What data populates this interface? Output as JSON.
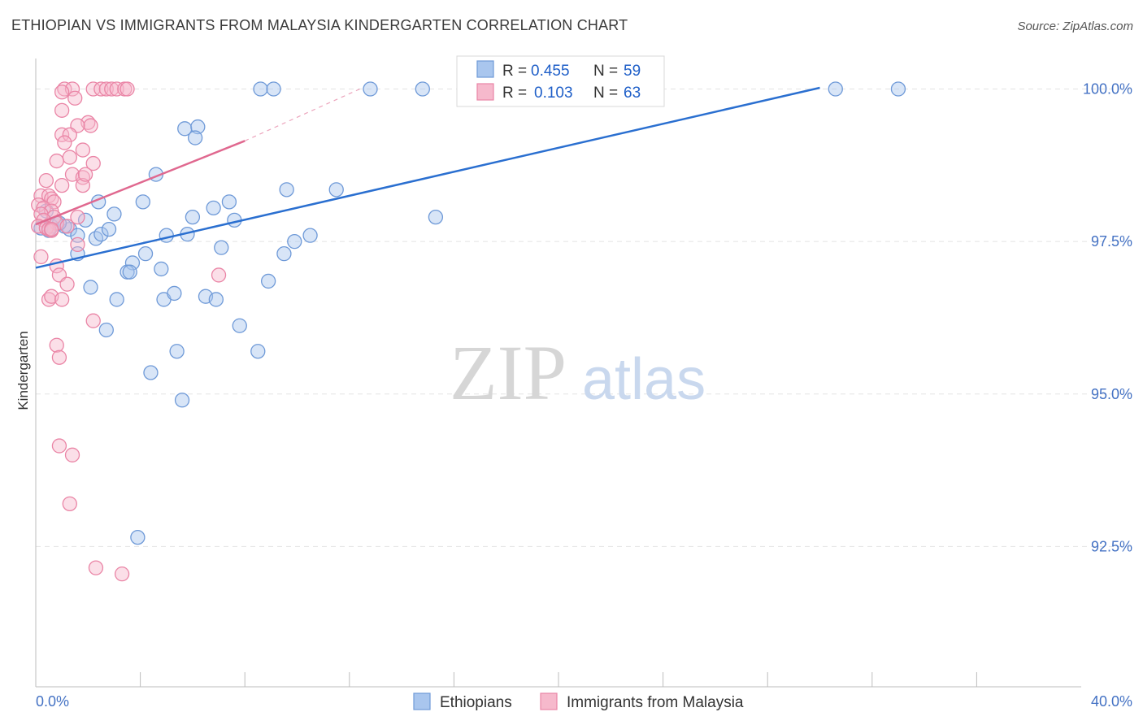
{
  "chart_data": {
    "type": "scatter",
    "title": "ETHIOPIAN VS IMMIGRANTS FROM MALAYSIA KINDERGARTEN CORRELATION CHART",
    "source": "Source: ZipAtlas.com",
    "ylabel": "Kindergarten",
    "xlim": [
      0,
      40
    ],
    "ylim": [
      90.2,
      100.5
    ],
    "x_tick_labels": [
      "0.0%",
      "40.0%"
    ],
    "y_ticks": [
      92.5,
      95.0,
      97.5,
      100.0
    ],
    "y_tick_labels": [
      "92.5%",
      "95.0%",
      "97.5%",
      "100.0%"
    ],
    "watermark": {
      "zip": "ZIP",
      "atlas": "atlas"
    },
    "colors": {
      "ethiopians_fill": "#a9c6ee",
      "ethiopians_stroke": "#6f9ad8",
      "ethiopians_line": "#2a6fd0",
      "malaysia_fill": "#f6b9cc",
      "malaysia_stroke": "#ea85a6",
      "malaysia_line": "#e0688f",
      "tick_text": "#4472c4",
      "grid": "#e3e3e3"
    },
    "legend": {
      "r_label": "R =",
      "n_label": "N =",
      "items": [
        {
          "r": "0.455",
          "n": "59"
        },
        {
          "r": "0.103",
          "n": "63"
        }
      ]
    },
    "series": [
      {
        "name": "Ethiopians",
        "trend": {
          "x": [
            0.0,
            30.0
          ],
          "y": [
            97.07,
            100.02
          ]
        },
        "points": [
          [
            8.6,
            100.0
          ],
          [
            9.1,
            100.0
          ],
          [
            12.8,
            100.0
          ],
          [
            14.8,
            100.0
          ],
          [
            30.6,
            100.0
          ],
          [
            33.0,
            100.0
          ],
          [
            5.7,
            99.35
          ],
          [
            6.2,
            99.38
          ],
          [
            6.1,
            99.2
          ],
          [
            4.6,
            98.6
          ],
          [
            9.6,
            98.35
          ],
          [
            11.5,
            98.35
          ],
          [
            15.3,
            97.9
          ],
          [
            2.4,
            98.15
          ],
          [
            4.1,
            98.15
          ],
          [
            6.8,
            98.05
          ],
          [
            7.4,
            98.15
          ],
          [
            7.6,
            97.85
          ],
          [
            0.4,
            98.0
          ],
          [
            0.8,
            97.8
          ],
          [
            1.9,
            97.85
          ],
          [
            3.0,
            97.95
          ],
          [
            0.2,
            97.72
          ],
          [
            0.6,
            97.75
          ],
          [
            1.3,
            97.7
          ],
          [
            1.6,
            97.6
          ],
          [
            2.3,
            97.55
          ],
          [
            2.5,
            97.62
          ],
          [
            5.0,
            97.6
          ],
          [
            5.8,
            97.62
          ],
          [
            7.1,
            97.4
          ],
          [
            9.9,
            97.5
          ],
          [
            1.6,
            97.3
          ],
          [
            4.2,
            97.3
          ],
          [
            3.7,
            97.15
          ],
          [
            3.5,
            97.0
          ],
          [
            3.6,
            97.0
          ],
          [
            4.8,
            97.05
          ],
          [
            9.5,
            97.3
          ],
          [
            2.1,
            96.75
          ],
          [
            8.9,
            96.85
          ],
          [
            3.1,
            96.55
          ],
          [
            4.9,
            96.55
          ],
          [
            5.3,
            96.65
          ],
          [
            6.5,
            96.6
          ],
          [
            6.9,
            96.55
          ],
          [
            2.7,
            96.05
          ],
          [
            7.8,
            96.12
          ],
          [
            5.4,
            95.7
          ],
          [
            8.5,
            95.7
          ],
          [
            4.4,
            95.35
          ],
          [
            5.6,
            94.9
          ],
          [
            3.9,
            92.65
          ],
          [
            0.5,
            97.68
          ],
          [
            1.1,
            97.75
          ],
          [
            0.9,
            97.8
          ],
          [
            2.8,
            97.7
          ],
          [
            6.0,
            97.9
          ],
          [
            10.5,
            97.6
          ]
        ]
      },
      {
        "name": "Immigrants from Malaysia",
        "trend": {
          "x": [
            0.0,
            8.0
          ],
          "y": [
            97.78,
            99.15
          ]
        },
        "trend_ext": {
          "x": [
            8.0,
            12.5
          ],
          "y": [
            99.15,
            100.02
          ]
        },
        "points": [
          [
            1.1,
            100.0
          ],
          [
            1.4,
            100.0
          ],
          [
            2.2,
            100.0
          ],
          [
            2.5,
            100.0
          ],
          [
            2.7,
            100.0
          ],
          [
            2.9,
            100.0
          ],
          [
            3.1,
            100.0
          ],
          [
            3.4,
            100.0
          ],
          [
            3.5,
            100.0
          ],
          [
            1.0,
            99.95
          ],
          [
            1.5,
            99.85
          ],
          [
            1.0,
            99.65
          ],
          [
            2.0,
            99.45
          ],
          [
            2.1,
            99.4
          ],
          [
            1.6,
            99.4
          ],
          [
            1.0,
            99.25
          ],
          [
            1.3,
            99.25
          ],
          [
            1.1,
            99.12
          ],
          [
            1.8,
            99.0
          ],
          [
            1.3,
            98.88
          ],
          [
            0.8,
            98.82
          ],
          [
            2.2,
            98.78
          ],
          [
            1.4,
            98.6
          ],
          [
            1.8,
            98.55
          ],
          [
            0.4,
            98.5
          ],
          [
            1.8,
            98.42
          ],
          [
            1.0,
            98.42
          ],
          [
            0.2,
            98.25
          ],
          [
            0.5,
            98.25
          ],
          [
            0.6,
            98.2
          ],
          [
            0.7,
            98.15
          ],
          [
            0.1,
            98.1
          ],
          [
            0.3,
            98.05
          ],
          [
            0.6,
            98.0
          ],
          [
            0.2,
            97.95
          ],
          [
            0.7,
            97.9
          ],
          [
            1.6,
            97.9
          ],
          [
            0.3,
            97.85
          ],
          [
            0.8,
            97.8
          ],
          [
            0.1,
            97.75
          ],
          [
            0.4,
            97.72
          ],
          [
            0.5,
            97.7
          ],
          [
            0.6,
            97.68
          ],
          [
            1.2,
            97.75
          ],
          [
            1.6,
            97.45
          ],
          [
            0.2,
            97.25
          ],
          [
            0.8,
            97.1
          ],
          [
            0.9,
            96.95
          ],
          [
            7.0,
            96.95
          ],
          [
            1.2,
            96.8
          ],
          [
            0.5,
            96.55
          ],
          [
            0.6,
            96.6
          ],
          [
            1.0,
            96.55
          ],
          [
            2.2,
            96.2
          ],
          [
            0.8,
            95.8
          ],
          [
            0.9,
            95.6
          ],
          [
            0.9,
            94.15
          ],
          [
            1.4,
            94.0
          ],
          [
            1.3,
            93.2
          ],
          [
            2.3,
            92.15
          ],
          [
            3.3,
            92.05
          ],
          [
            1.9,
            98.6
          ],
          [
            0.6,
            97.7
          ]
        ]
      }
    ]
  },
  "bottom_legend": [
    "Ethiopians",
    "Immigrants from Malaysia"
  ]
}
